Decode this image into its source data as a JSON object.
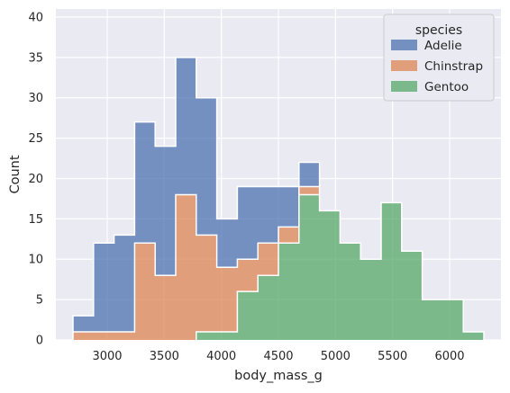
{
  "chart_data": {
    "type": "histogram",
    "stacking": "multiple-stack, step element",
    "xlabel": "body_mass_g",
    "ylabel": "Count",
    "xlim": [
      2550,
      6450
    ],
    "ylim": [
      0,
      41
    ],
    "x_ticks": [
      3000,
      3500,
      4000,
      4500,
      5000,
      5500,
      6000
    ],
    "y_ticks": [
      0,
      5,
      10,
      15,
      20,
      25,
      30,
      35,
      40
    ],
    "bin_edges": [
      2700,
      2880,
      3060,
      3240,
      3420,
      3600,
      3780,
      3960,
      4140,
      4320,
      4500,
      4680,
      4860,
      5040,
      5220,
      5400,
      5580,
      5760,
      5940,
      6120,
      6300
    ],
    "grid": true,
    "background": "#eaeaf2",
    "legend": {
      "title": "species",
      "position": "top-right"
    },
    "series": [
      {
        "name": "Adelie",
        "color": "#4c72b0",
        "counts": [
          2,
          11,
          12,
          15,
          16,
          17,
          17,
          6,
          9,
          7,
          5,
          3,
          0,
          0,
          0,
          0,
          0,
          0,
          0,
          0
        ]
      },
      {
        "name": "Chinstrap",
        "color": "#dd8452",
        "counts": [
          1,
          1,
          1,
          12,
          8,
          18,
          12,
          8,
          4,
          4,
          2,
          1,
          0,
          0,
          0,
          0,
          0,
          0,
          0,
          0
        ]
      },
      {
        "name": "Gentoo",
        "color": "#55a868",
        "counts": [
          0,
          0,
          0,
          0,
          0,
          0,
          1,
          1,
          6,
          8,
          12,
          18,
          16,
          12,
          10,
          17,
          11,
          5,
          5,
          1
        ]
      }
    ]
  }
}
